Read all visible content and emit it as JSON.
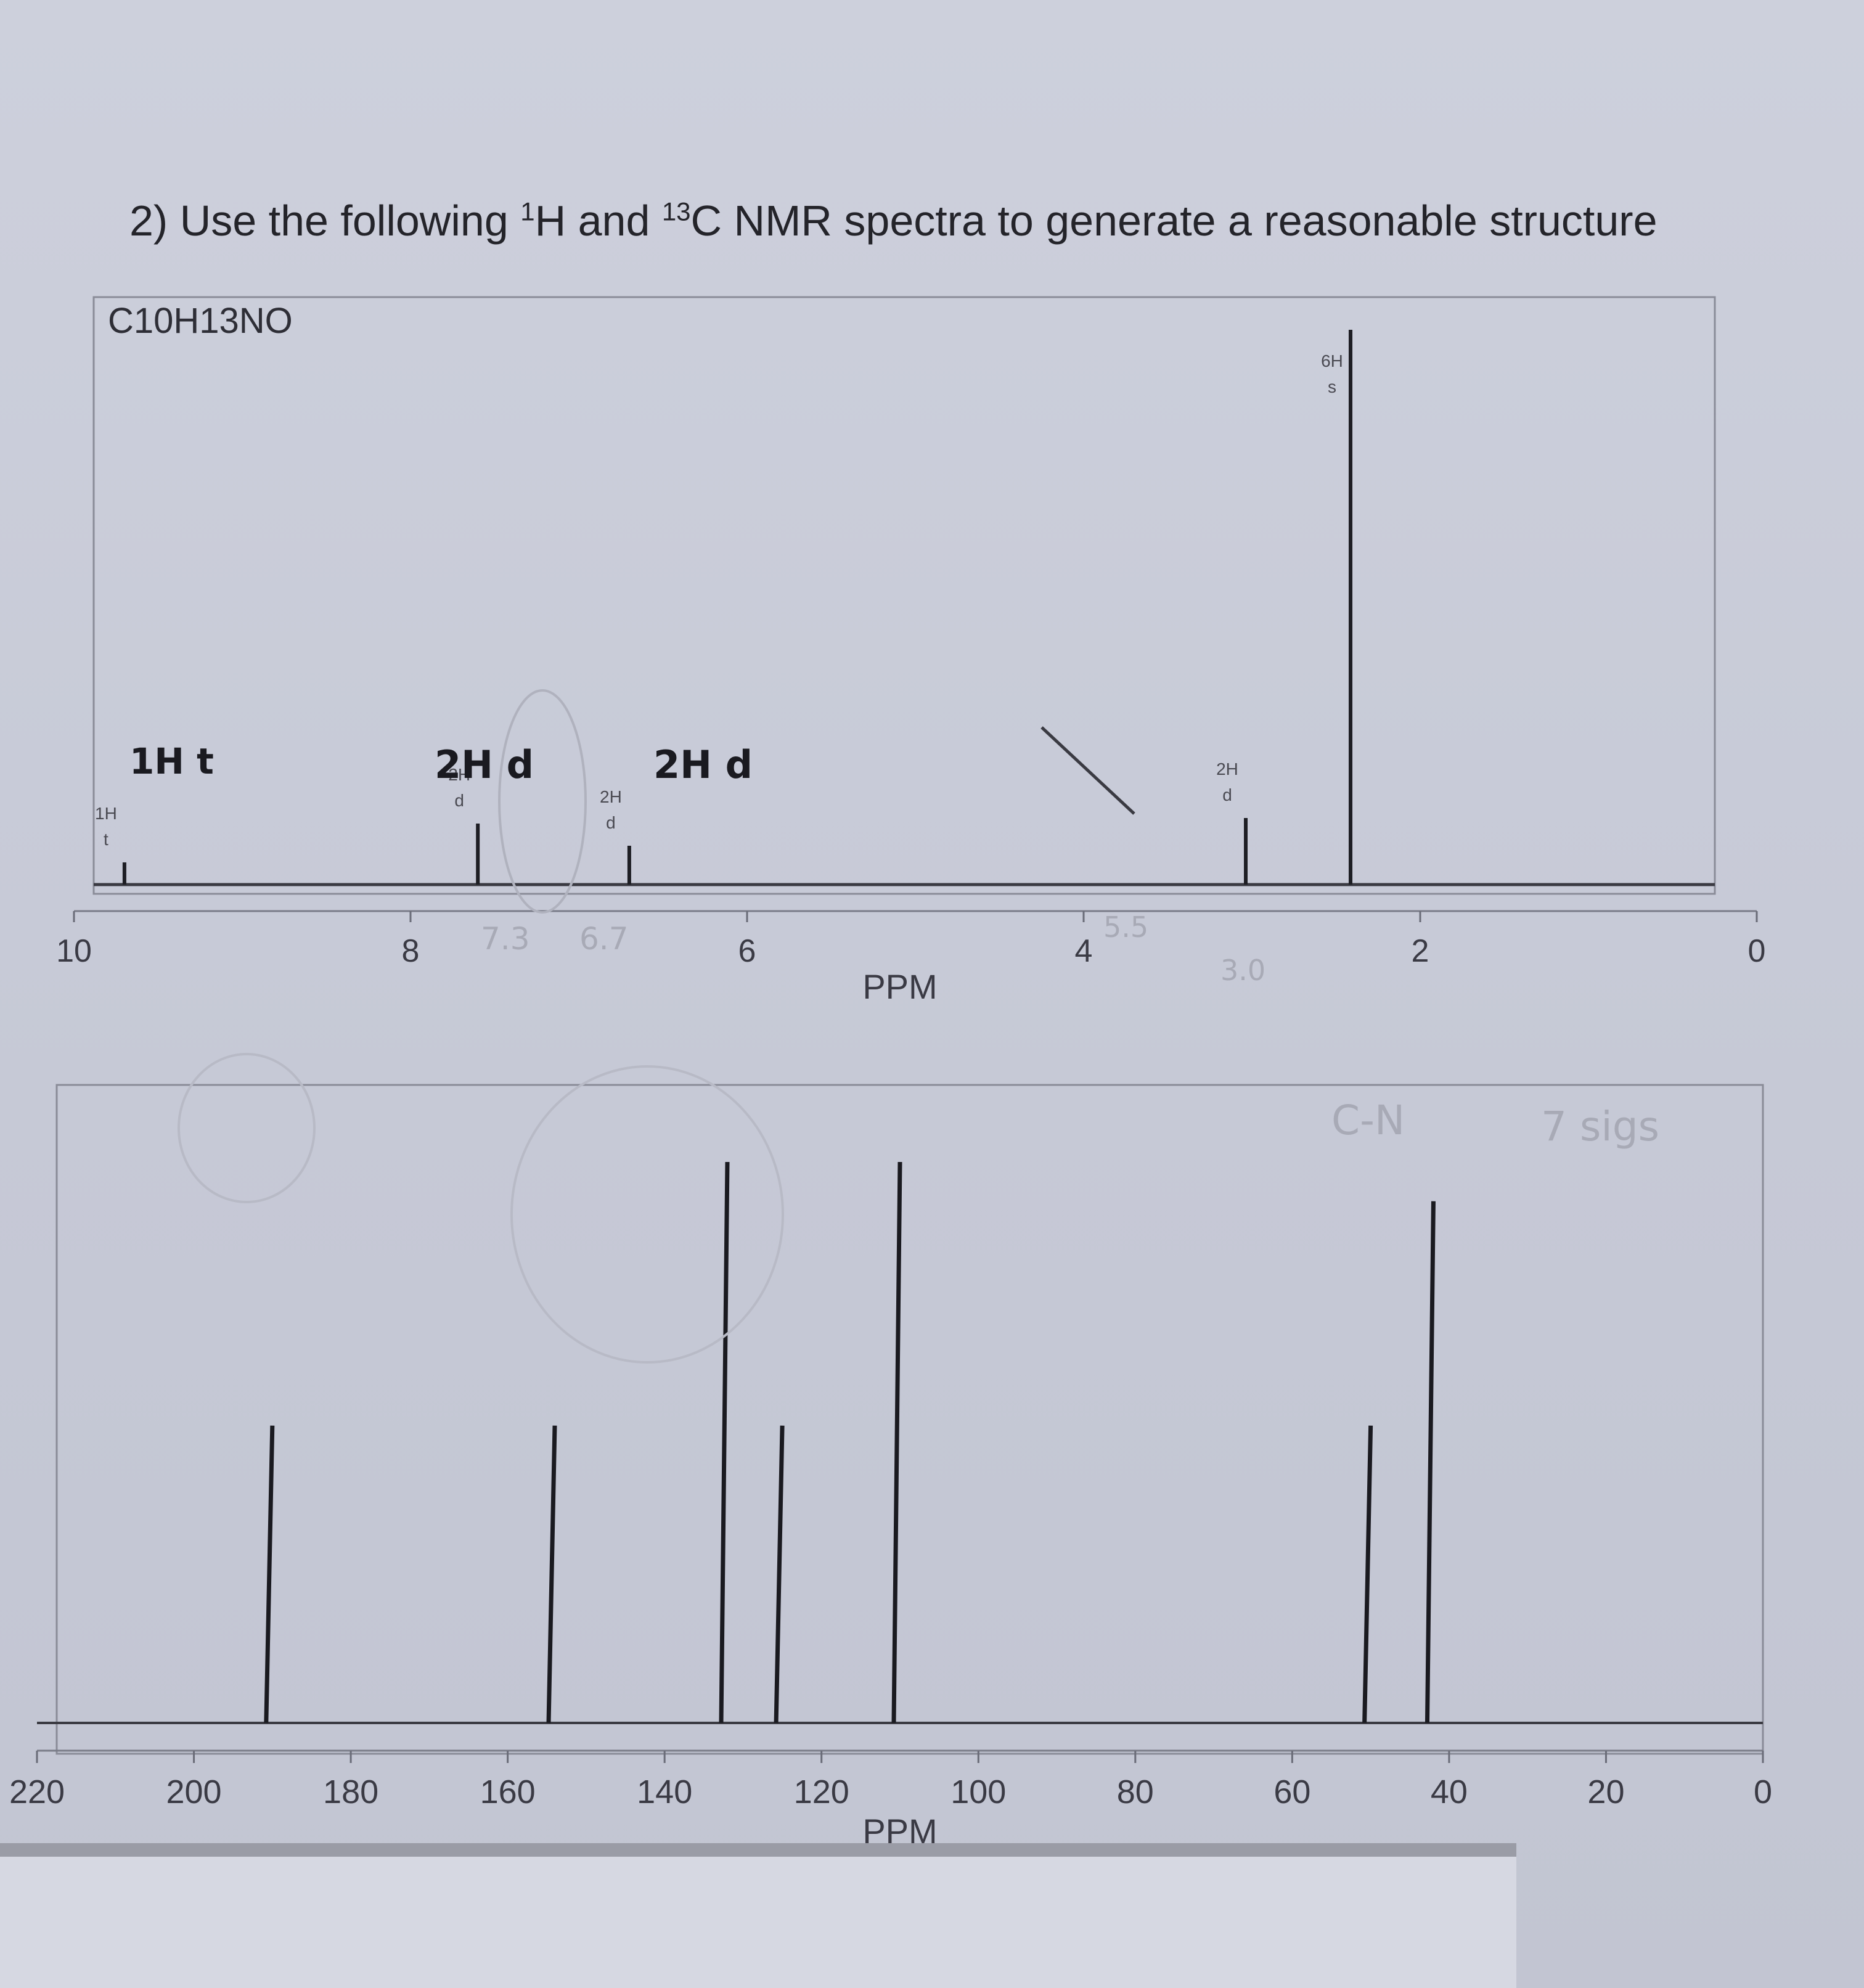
{
  "question": {
    "number": "2)",
    "text_a": "Use the following ",
    "sup1": "1",
    "text_b": "H and ",
    "sup2": "13",
    "text_c": "C NMR spectra to generate a reasonable structure"
  },
  "chart_data": [
    {
      "type": "bar",
      "formula_label": "C10H13NO",
      "xlabel": "PPM",
      "xlim": [
        10,
        0
      ],
      "xticks": [
        "10",
        "8",
        "6",
        "4",
        "2",
        "0"
      ],
      "tick_values": [
        10,
        8,
        6,
        4,
        2,
        0
      ],
      "peaks": [
        {
          "ppm": 9.7,
          "height": 0.04,
          "integration": "1H",
          "multiplicity": "t"
        },
        {
          "ppm": 7.6,
          "height": 0.11,
          "integration": "2H",
          "multiplicity": "d"
        },
        {
          "ppm": 6.7,
          "height": 0.07,
          "integration": "2H",
          "multiplicity": "d"
        },
        {
          "ppm": 3.0,
          "height": 0.12,
          "integration": "2H",
          "multiplicity": "d"
        },
        {
          "ppm": 3.0,
          "height": 1.0,
          "integration": "6H",
          "multiplicity": "s"
        }
      ],
      "annotations_handwritten": [
        "1H t",
        "2H d",
        "2H d",
        "7.3",
        "6.7",
        "5.5",
        "3.0"
      ]
    },
    {
      "type": "bar",
      "xlabel": "PPM",
      "xlim": [
        220,
        0
      ],
      "xticks": [
        "220",
        "200",
        "180",
        "160",
        "140",
        "120",
        "100",
        "80",
        "60",
        "40",
        "20",
        "0"
      ],
      "tick_values": [
        220,
        200,
        180,
        160,
        140,
        120,
        100,
        80,
        60,
        40,
        20,
        0
      ],
      "peaks": [
        {
          "ppm": 190,
          "height": 0.53
        },
        {
          "ppm": 154,
          "height": 0.53
        },
        {
          "ppm": 132,
          "height": 1.0
        },
        {
          "ppm": 125,
          "height": 0.53
        },
        {
          "ppm": 110,
          "height": 1.0
        },
        {
          "ppm": 50,
          "height": 0.53
        },
        {
          "ppm": 42,
          "height": 0.93
        }
      ],
      "annotations_handwritten": [
        "C-N",
        "7 sigs"
      ]
    }
  ]
}
